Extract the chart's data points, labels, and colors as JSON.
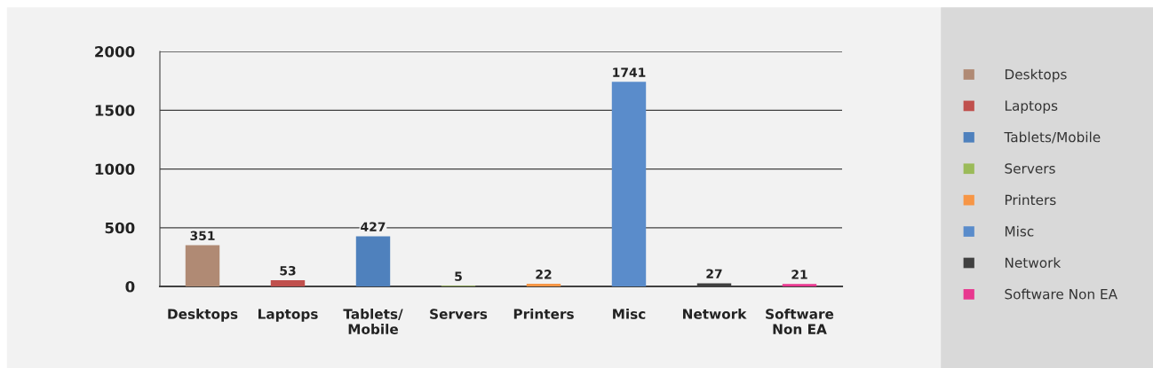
{
  "chart_data": {
    "type": "bar",
    "categories": [
      "Desktops",
      "Laptops",
      "Tablets/Mobile",
      "Servers",
      "Printers",
      "Misc",
      "Network",
      "Software Non EA"
    ],
    "series": [
      {
        "name": "Desktops",
        "color": "#b08a74",
        "values": [
          351,
          null,
          null,
          null,
          null,
          null,
          null,
          null
        ]
      },
      {
        "name": "Laptops",
        "color": "#c0504d",
        "values": [
          null,
          53,
          null,
          null,
          null,
          null,
          null,
          null
        ]
      },
      {
        "name": "Tablets/Mobile",
        "color": "#4f81bd",
        "values": [
          null,
          null,
          427,
          null,
          null,
          null,
          null,
          null
        ]
      },
      {
        "name": "Servers",
        "color": "#9bbb59",
        "values": [
          null,
          null,
          null,
          5,
          null,
          null,
          null,
          null
        ]
      },
      {
        "name": "Printers",
        "color": "#f79646",
        "values": [
          null,
          null,
          null,
          null,
          22,
          null,
          null,
          null
        ]
      },
      {
        "name": "Misc",
        "color": "#5a8ccb",
        "values": [
          null,
          null,
          null,
          null,
          null,
          1741,
          null,
          null
        ]
      },
      {
        "name": "Network",
        "color": "#404040",
        "values": [
          null,
          null,
          null,
          null,
          null,
          null,
          27,
          null
        ]
      },
      {
        "name": "Software Non EA",
        "color": "#e8388f",
        "values": [
          null,
          null,
          null,
          null,
          null,
          null,
          null,
          21
        ]
      }
    ],
    "ylim": [
      0,
      2000
    ],
    "yticks": [
      0,
      500,
      1000,
      1500,
      2000
    ],
    "grid": "y",
    "legend": "right",
    "data_labels": true
  }
}
